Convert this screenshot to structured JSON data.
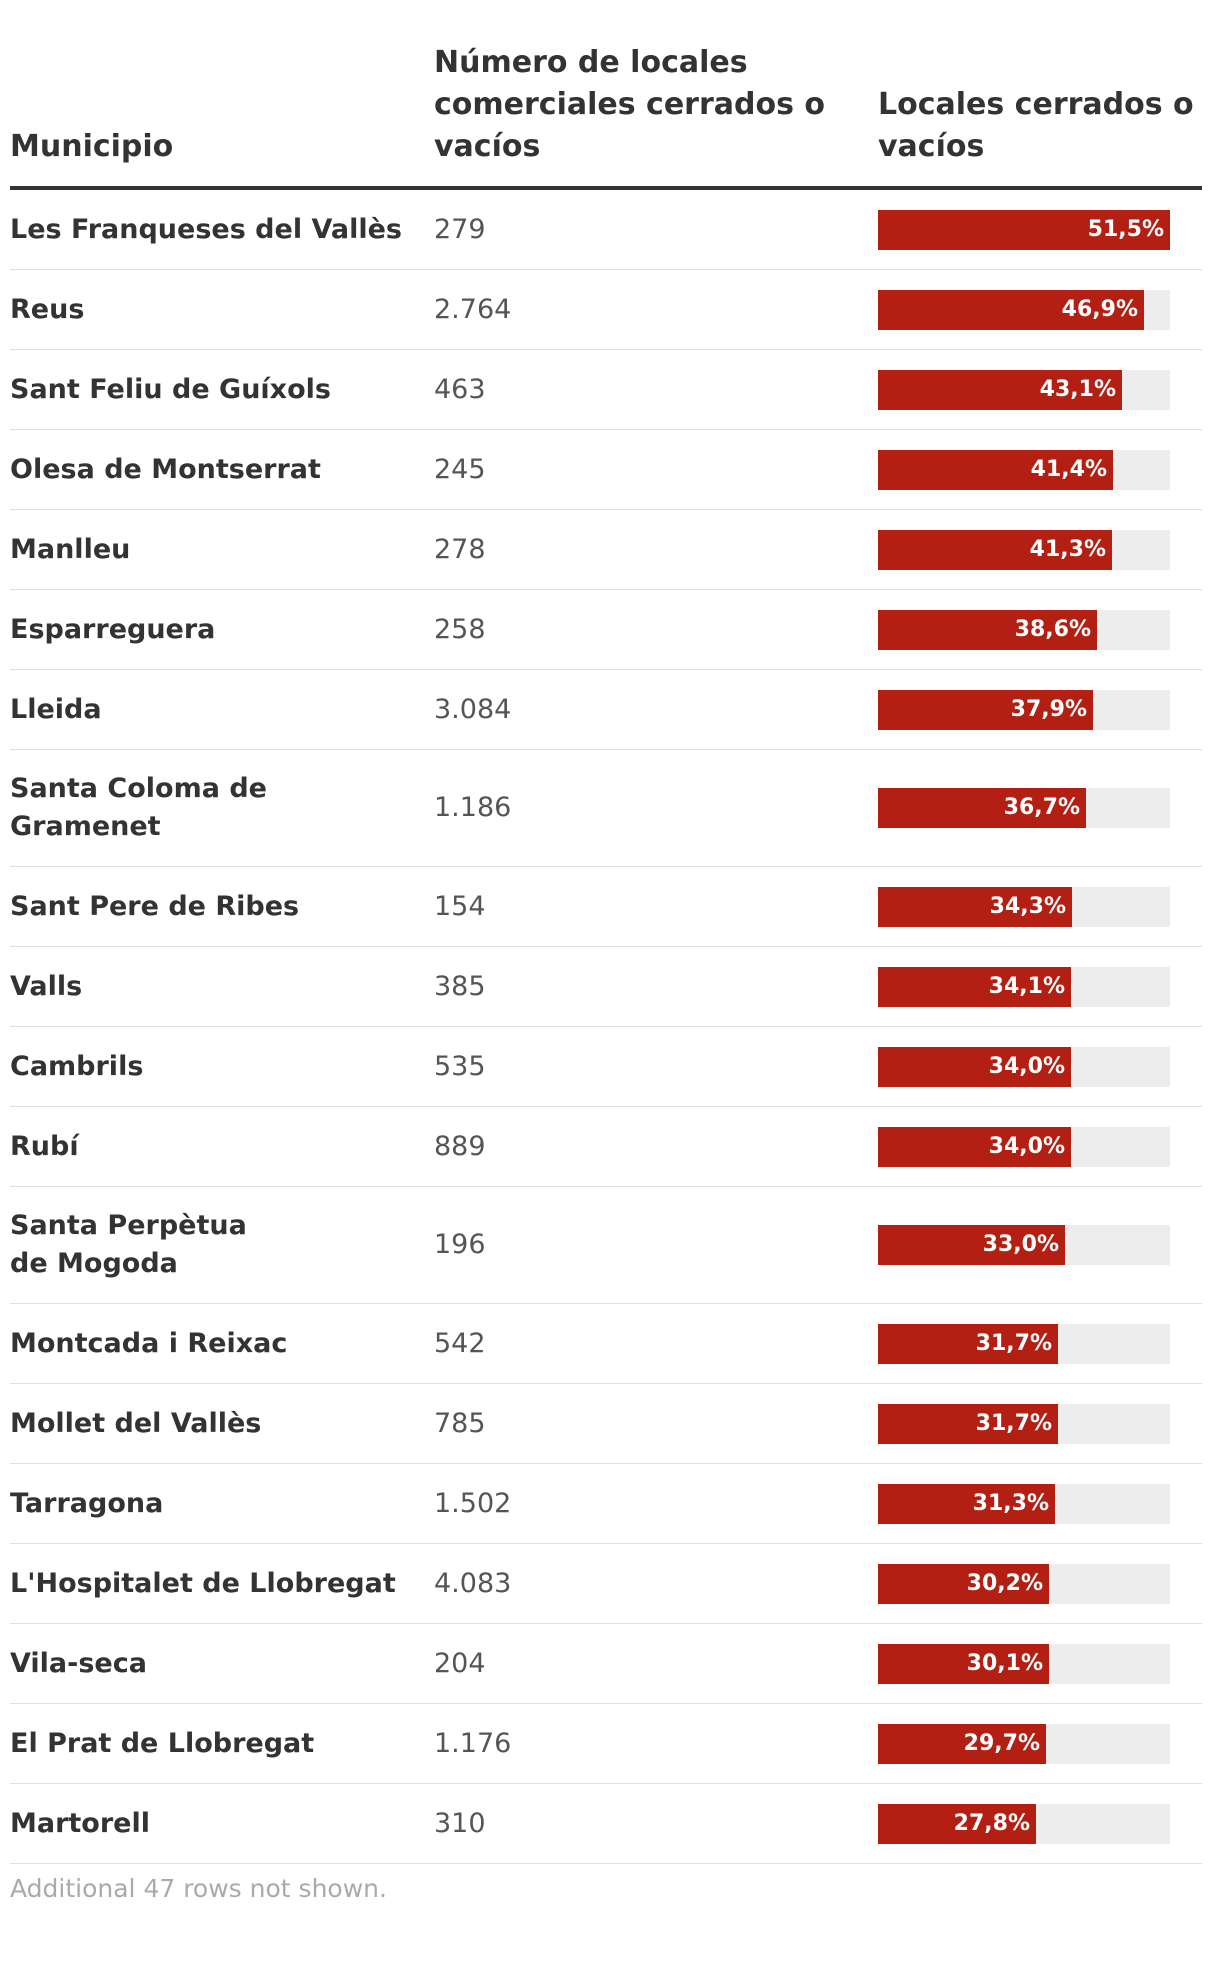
{
  "headers": {
    "municipio": "Municipio",
    "count": "Número de locales comerciales cerrados o vacíos",
    "pct": "Locales cerrados o vacíos"
  },
  "colors": {
    "bar": "#b31f13",
    "track": "#ededed",
    "label": "#ffffff"
  },
  "chart_data": {
    "type": "table",
    "title": "",
    "columns": [
      "Municipio",
      "Número de locales comerciales cerrados o vacíos",
      "Locales cerrados o vacíos"
    ],
    "bar_max": 51.5,
    "rows": [
      {
        "municipio": "Les Franqueses del Vallès",
        "count": "279",
        "pct": 51.5,
        "pct_label": "51,5%"
      },
      {
        "municipio": "Reus",
        "count": "2.764",
        "pct": 46.9,
        "pct_label": "46,9%"
      },
      {
        "municipio": "Sant Feliu de Guíxols",
        "count": "463",
        "pct": 43.1,
        "pct_label": "43,1%"
      },
      {
        "municipio": "Olesa de Montserrat",
        "count": "245",
        "pct": 41.4,
        "pct_label": "41,4%"
      },
      {
        "municipio": "Manlleu",
        "count": "278",
        "pct": 41.3,
        "pct_label": "41,3%"
      },
      {
        "municipio": "Esparreguera",
        "count": "258",
        "pct": 38.6,
        "pct_label": "38,6%"
      },
      {
        "municipio": "Lleida",
        "count": "3.084",
        "pct": 37.9,
        "pct_label": "37,9%"
      },
      {
        "municipio": "Santa Coloma de Gramenet",
        "count": "1.186",
        "pct": 36.7,
        "pct_label": "36,7%",
        "wrap": true
      },
      {
        "municipio": "Sant Pere de Ribes",
        "count": "154",
        "pct": 34.3,
        "pct_label": "34,3%"
      },
      {
        "municipio": "Valls",
        "count": "385",
        "pct": 34.1,
        "pct_label": "34,1%"
      },
      {
        "municipio": "Cambrils",
        "count": "535",
        "pct": 34.0,
        "pct_label": "34,0%"
      },
      {
        "municipio": "Rubí",
        "count": "889",
        "pct": 34.0,
        "pct_label": "34,0%"
      },
      {
        "municipio": "Santa Perpètua de Mogoda",
        "count": "196",
        "pct": 33.0,
        "pct_label": "33,0%",
        "wrap": true
      },
      {
        "municipio": "Montcada i Reixac",
        "count": "542",
        "pct": 31.7,
        "pct_label": "31,7%"
      },
      {
        "municipio": "Mollet del Vallès",
        "count": "785",
        "pct": 31.7,
        "pct_label": "31,7%"
      },
      {
        "municipio": "Tarragona",
        "count": "1.502",
        "pct": 31.3,
        "pct_label": "31,3%"
      },
      {
        "municipio": "L'Hospitalet de Llobregat",
        "count": "4.083",
        "pct": 30.2,
        "pct_label": "30,2%"
      },
      {
        "municipio": "Vila-seca",
        "count": "204",
        "pct": 30.1,
        "pct_label": "30,1%"
      },
      {
        "municipio": "El Prat de Llobregat",
        "count": "1.176",
        "pct": 29.7,
        "pct_label": "29,7%"
      },
      {
        "municipio": "Martorell",
        "count": "310",
        "pct": 27.8,
        "pct_label": "27,8%"
      }
    ]
  },
  "footnote": "Additional 47 rows not shown."
}
